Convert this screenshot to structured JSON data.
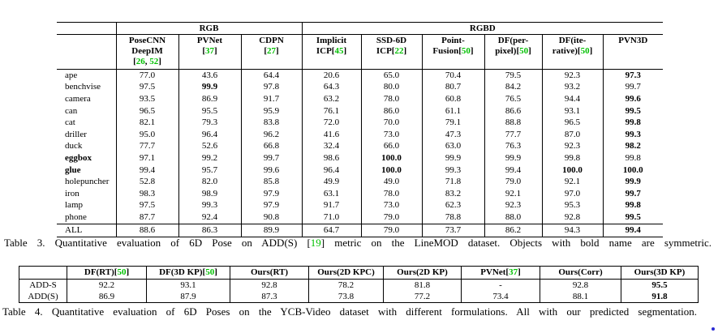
{
  "page": {
    "ref_color": "#00c000",
    "text_color": "#000000",
    "background": "#ffffff"
  },
  "table3": {
    "group_header": {
      "rgb": "RGB",
      "rgbd": "RGBD"
    },
    "columns": [
      {
        "id": "posecnn-deepim",
        "lines": [
          [
            {
              "t": "PoseCNN"
            }
          ],
          [
            {
              "t": "DeepIM"
            }
          ],
          [
            {
              "t": "["
            },
            {
              "r": "26"
            },
            {
              "t": ", "
            },
            {
              "r": "52"
            },
            {
              "t": "]"
            }
          ]
        ]
      },
      {
        "id": "pvnet",
        "lines": [
          [
            {
              "t": "PVNet"
            }
          ],
          [
            {
              "t": "["
            },
            {
              "r": "37"
            },
            {
              "t": "]"
            }
          ]
        ]
      },
      {
        "id": "cdpn",
        "lines": [
          [
            {
              "t": "CDPN"
            }
          ],
          [
            {
              "t": "["
            },
            {
              "r": "27"
            },
            {
              "t": "]"
            }
          ]
        ]
      },
      {
        "id": "implicit-icp",
        "lines": [
          [
            {
              "t": "Implicit"
            }
          ],
          [
            {
              "t": "ICP["
            },
            {
              "r": "45"
            },
            {
              "t": "]"
            }
          ]
        ]
      },
      {
        "id": "ssd6d-icp",
        "lines": [
          [
            {
              "t": "SSD-6D"
            }
          ],
          [
            {
              "t": "ICP["
            },
            {
              "r": "22"
            },
            {
              "t": "]"
            }
          ]
        ]
      },
      {
        "id": "pointfusion",
        "lines": [
          [
            {
              "t": "Point-"
            }
          ],
          [
            {
              "t": "Fusion["
            },
            {
              "r": "50"
            },
            {
              "t": "]"
            }
          ]
        ]
      },
      {
        "id": "df-per-pixel",
        "lines": [
          [
            {
              "t": "DF(per-"
            }
          ],
          [
            {
              "t": "pixel)["
            },
            {
              "r": "50"
            },
            {
              "t": "]"
            }
          ]
        ]
      },
      {
        "id": "df-iterative",
        "lines": [
          [
            {
              "t": "DF(ite-"
            }
          ],
          [
            {
              "t": "rative)["
            },
            {
              "r": "50"
            },
            {
              "t": "]"
            }
          ]
        ]
      },
      {
        "id": "pvn3d",
        "lines": [
          [
            {
              "t": "PVN3D"
            }
          ]
        ]
      }
    ],
    "rows": [
      {
        "label": "ape",
        "label_bold": false,
        "values": [
          "77.0",
          "43.6",
          "64.4",
          "20.6",
          "65.0",
          "70.4",
          "79.5",
          "92.3",
          "97.3"
        ],
        "bold": [
          8
        ]
      },
      {
        "label": "benchvise",
        "label_bold": false,
        "values": [
          "97.5",
          "99.9",
          "97.8",
          "64.3",
          "80.0",
          "80.7",
          "84.2",
          "93.2",
          "99.7"
        ],
        "bold": [
          1
        ]
      },
      {
        "label": "camera",
        "label_bold": false,
        "values": [
          "93.5",
          "86.9",
          "91.7",
          "63.2",
          "78.0",
          "60.8",
          "76.5",
          "94.4",
          "99.6"
        ],
        "bold": [
          8
        ]
      },
      {
        "label": "can",
        "label_bold": false,
        "values": [
          "96.5",
          "95.5",
          "95.9",
          "76.1",
          "86.0",
          "61.1",
          "86.6",
          "93.1",
          "99.5"
        ],
        "bold": [
          8
        ]
      },
      {
        "label": "cat",
        "label_bold": false,
        "values": [
          "82.1",
          "79.3",
          "83.8",
          "72.0",
          "70.0",
          "79.1",
          "88.8",
          "96.5",
          "99.8"
        ],
        "bold": [
          8
        ]
      },
      {
        "label": "driller",
        "label_bold": false,
        "values": [
          "95.0",
          "96.4",
          "96.2",
          "41.6",
          "73.0",
          "47.3",
          "77.7",
          "87.0",
          "99.3"
        ],
        "bold": [
          8
        ]
      },
      {
        "label": "duck",
        "label_bold": false,
        "values": [
          "77.7",
          "52.6",
          "66.8",
          "32.4",
          "66.0",
          "63.0",
          "76.3",
          "92.3",
          "98.2"
        ],
        "bold": [
          8
        ]
      },
      {
        "label": "eggbox",
        "label_bold": true,
        "values": [
          "97.1",
          "99.2",
          "99.7",
          "98.6",
          "100.0",
          "99.9",
          "99.9",
          "99.8",
          "99.8"
        ],
        "bold": [
          4
        ]
      },
      {
        "label": "glue",
        "label_bold": true,
        "values": [
          "99.4",
          "95.7",
          "99.6",
          "96.4",
          "100.0",
          "99.3",
          "99.4",
          "100.0",
          "100.0"
        ],
        "bold": [
          4,
          7,
          8
        ]
      },
      {
        "label": "holepuncher",
        "label_bold": false,
        "values": [
          "52.8",
          "82.0",
          "85.8",
          "49.9",
          "49.0",
          "71.8",
          "79.0",
          "92.1",
          "99.9"
        ],
        "bold": [
          8
        ]
      },
      {
        "label": "iron",
        "label_bold": false,
        "values": [
          "98.3",
          "98.9",
          "97.9",
          "63.1",
          "78.0",
          "83.2",
          "92.1",
          "97.0",
          "99.7"
        ],
        "bold": [
          8
        ]
      },
      {
        "label": "lamp",
        "label_bold": false,
        "values": [
          "97.5",
          "99.3",
          "97.9",
          "91.7",
          "73.0",
          "62.3",
          "92.3",
          "95.3",
          "99.8"
        ],
        "bold": [
          8
        ]
      },
      {
        "label": "phone",
        "label_bold": false,
        "values": [
          "87.7",
          "92.4",
          "90.8",
          "71.0",
          "79.0",
          "78.8",
          "88.0",
          "92.8",
          "99.5"
        ],
        "bold": [
          8
        ]
      }
    ],
    "all_row": {
      "label": "ALL",
      "label_bold": false,
      "values": [
        "88.6",
        "86.3",
        "89.9",
        "64.7",
        "79.0",
        "73.7",
        "86.2",
        "94.3",
        "99.4"
      ],
      "bold": [
        8
      ]
    }
  },
  "caption3": {
    "parts": [
      {
        "t": "Table 3. Quantitative evaluation of 6D Pose on ADD(S) ["
      },
      {
        "r": "19"
      },
      {
        "t": "] metric on the LineMOD dataset. Objects with bold name are symmetric."
      }
    ]
  },
  "table4": {
    "columns": [
      {
        "id": "df-rt",
        "parts": [
          {
            "t": "DF(RT)["
          },
          {
            "r": "50"
          },
          {
            "t": "]"
          }
        ]
      },
      {
        "id": "df-3d-kp",
        "parts": [
          {
            "t": "DF(3D KP)["
          },
          {
            "r": "50"
          },
          {
            "t": "]"
          }
        ]
      },
      {
        "id": "ours-rt",
        "parts": [
          {
            "t": "Ours(RT)"
          }
        ]
      },
      {
        "id": "ours-2d-kpc",
        "parts": [
          {
            "t": "Ours(2D KPC)"
          }
        ]
      },
      {
        "id": "ours-2d-kp",
        "parts": [
          {
            "t": "Ours(2D KP)"
          }
        ]
      },
      {
        "id": "pvnet",
        "parts": [
          {
            "t": "PVNet["
          },
          {
            "r": "37"
          },
          {
            "t": "]"
          }
        ]
      },
      {
        "id": "ours-corr",
        "parts": [
          {
            "t": "Ours(Corr)"
          }
        ]
      },
      {
        "id": "ours-3d-kp",
        "parts": [
          {
            "t": "Ours(3D KP)"
          }
        ]
      }
    ],
    "rows": [
      {
        "label": "ADD-S",
        "values": [
          "92.2",
          "93.1",
          "92.8",
          "78.2",
          "81.8",
          "-",
          "92.8",
          "95.5"
        ],
        "bold": [
          7
        ]
      },
      {
        "label": "ADD(S)",
        "values": [
          "86.9",
          "87.9",
          "87.3",
          "73.8",
          "77.2",
          "73.4",
          "88.1",
          "91.8"
        ],
        "bold": [
          7
        ]
      }
    ]
  },
  "caption4": {
    "parts": [
      {
        "t": "Table 4. Quantitative evaluation of 6D Poses on the YCB-Video dataset with different formulations. All with our predicted segmentation."
      }
    ]
  }
}
